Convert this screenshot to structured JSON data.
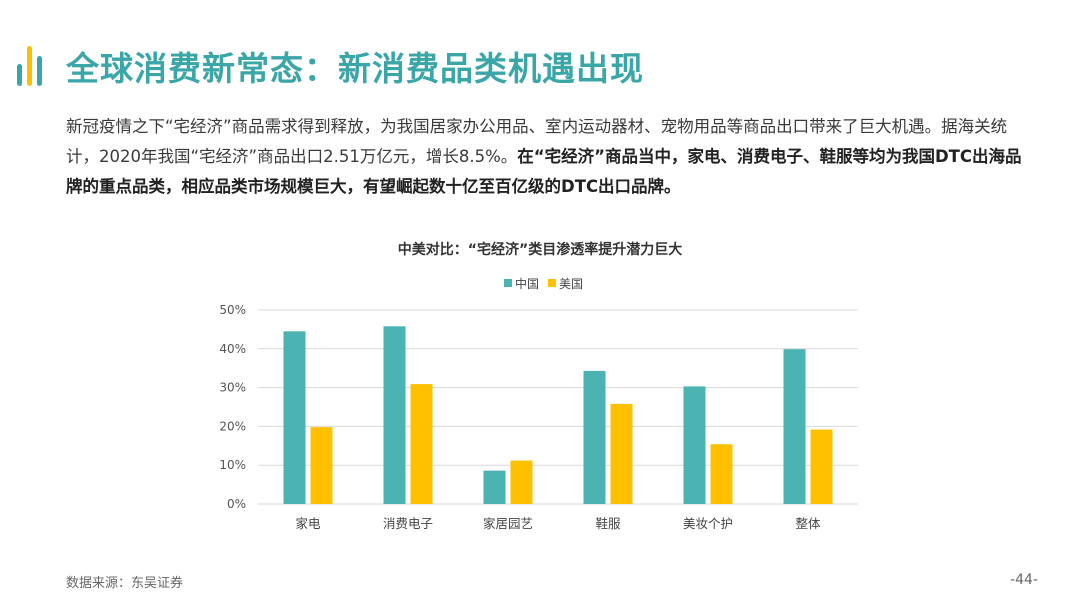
{
  "slide": {
    "title": "全球消费新常态：新消费品类机遇出现",
    "paragraph": {
      "normal": "新冠疫情之下“宅经济”商品需求得到释放，为我国居家办公用品、室内运动器材、宠物用品等商品出口带来了巨大机遇。据海关统计，2020年我国“宅经济”商品出口2.51万亿元，增长8.5%。",
      "bold": "在“宅经济”商品当中，家电、消费电子、鞋服等均为我国DTC出海品牌的重点品类，相应品类市场规模巨大，有望崛起数十亿至百亿级的DTC出口品牌。"
    },
    "source": "数据来源：东吴证券",
    "page_number": "-44-"
  },
  "colors": {
    "accent": "#3aa6a7",
    "china": "#4bb3b1",
    "usa": "#ffc000",
    "grid": "#d9d9d9"
  },
  "chart_data": {
    "type": "bar",
    "title": "中美对比：“宅经济”类目渗透率提升潜力巨大",
    "categories": [
      "家电",
      "消费电子",
      "家居园艺",
      "鞋服",
      "美妆个护",
      "整体"
    ],
    "series": [
      {
        "name": "中国",
        "values": [
          44.5,
          45.8,
          8.6,
          34.3,
          30.3,
          39.9
        ]
      },
      {
        "name": "美国",
        "values": [
          19.8,
          30.9,
          11.2,
          25.8,
          15.4,
          19.2
        ]
      }
    ],
    "y_ticks": [
      "0%",
      "10%",
      "20%",
      "30%",
      "40%",
      "50%"
    ],
    "ylim": [
      0,
      50
    ],
    "y_unit": "%",
    "grid": true,
    "legend_position": "top-center",
    "xlabel": "",
    "ylabel": ""
  }
}
